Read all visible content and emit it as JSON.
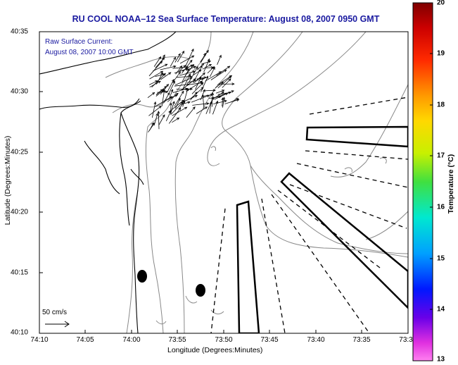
{
  "title": "RU COOL  NOAA–12  Sea Surface Temperature:  August 08, 2007 0950 GMT",
  "annotation": {
    "line1": "Raw Surface Current:",
    "line2": "August 08, 2007 10:00 GMT"
  },
  "axes": {
    "xlabel": "Longitude (Degrees:Minutes)",
    "ylabel": "Latitude (Degrees:Minutes)",
    "xticks": [
      "74:10",
      "74:05",
      "74:00",
      "73:55",
      "73:50",
      "73:45",
      "73:40",
      "73:35",
      "73:3"
    ],
    "yticks": [
      "40:35",
      "40:30",
      "40:25",
      "40:20",
      "40:15",
      "40:10"
    ]
  },
  "colorbar": {
    "label": "Temperature (°C)",
    "ticks": [
      "20",
      "19",
      "18",
      "17",
      "16",
      "15",
      "14",
      "13"
    ]
  },
  "scale": {
    "label": "50 cm/s"
  },
  "colors": {
    "title_text": "#1a1aa0",
    "annotation_text": "#1a1aa0",
    "coastline": "#000000",
    "bathymetry": "#888888",
    "arrows": "#000000"
  }
}
